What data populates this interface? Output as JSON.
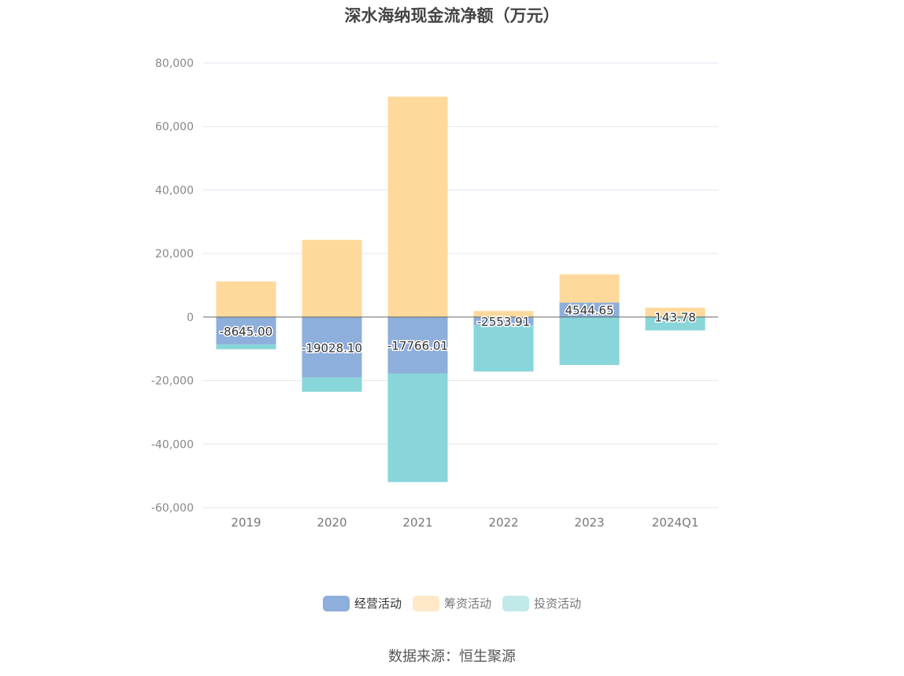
{
  "chart_data": {
    "type": "bar",
    "stacked": true,
    "title": "深水海纳现金流净额（万元）",
    "categories": [
      "2019",
      "2020",
      "2021",
      "2022",
      "2023",
      "2024Q1"
    ],
    "ylim": [
      -60000,
      80000
    ],
    "yticks": [
      80000,
      60000,
      40000,
      20000,
      0,
      -20000,
      -40000,
      -60000
    ],
    "ytick_labels": [
      "80,000",
      "60,000",
      "40,000",
      "20,000",
      "0",
      "-20,000",
      "-40,000",
      "-60,000"
    ],
    "grid": true,
    "legend_position": "bottom",
    "series": [
      {
        "name": "经营活动",
        "color": "#8eaedb",
        "values": [
          -8645.0,
          -19028.1,
          -17766.01,
          -2553.91,
          4544.65,
          143.78
        ]
      },
      {
        "name": "筹资活动",
        "color": "#ffd99c",
        "values": [
          11200,
          24300,
          69400,
          1900,
          8900,
          2800
        ]
      },
      {
        "name": "投资活动",
        "color": "#88d6d9",
        "values": [
          -1500,
          -4500,
          -34200,
          -14600,
          -15100,
          -4200
        ]
      }
    ],
    "data_labels": [
      "-8645.00",
      "-19028.10",
      "-17766.01",
      "-2553.91",
      "4544.65",
      "143.78"
    ]
  },
  "legend": [
    {
      "label": "经营活动",
      "color": "#8eaedb"
    },
    {
      "label": "筹资活动",
      "color": "#ffe9c8"
    },
    {
      "label": "投资活动",
      "color": "#c2e9ea"
    }
  ],
  "source": "数据来源：恒生聚源"
}
